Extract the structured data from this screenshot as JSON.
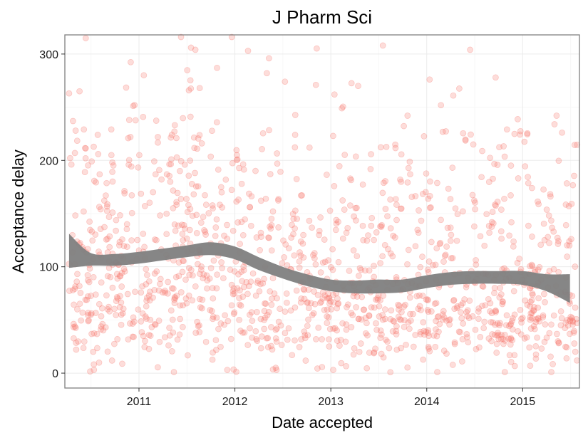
{
  "chart_data": {
    "type": "scatter",
    "title": "J Pharm Sci",
    "xlabel": "Date accepted",
    "ylabel": "Acceptance delay",
    "x_range": [
      "2010-03-25",
      "2015-08-05"
    ],
    "ylim": [
      -14,
      318
    ],
    "x_ticks": [
      "2011-01-01",
      "2012-01-01",
      "2013-01-01",
      "2014-01-01",
      "2015-01-01"
    ],
    "x_tick_labels": [
      "2011",
      "2012",
      "2013",
      "2014",
      "2015"
    ],
    "y_ticks": [
      0,
      100,
      200,
      300
    ],
    "y_tick_labels": [
      "0",
      "100",
      "200",
      "300"
    ],
    "grid": true,
    "point_color": "#f8766d",
    "point_alpha": 0.25,
    "smooth_color": "#7f7f7f",
    "series": [
      {
        "points_highlight": [
          {
            "x": "2010-04-10",
            "y": 263
          },
          {
            "x": "2010-04-25",
            "y": 237
          },
          {
            "x": "2010-05-05",
            "y": 228
          },
          {
            "x": "2010-05-20",
            "y": 265
          },
          {
            "x": "2010-06-12",
            "y": 202
          },
          {
            "x": "2010-07-28",
            "y": 224
          },
          {
            "x": "2010-09-18",
            "y": 205
          },
          {
            "x": "2010-11-25",
            "y": 238
          },
          {
            "x": "2010-12-15",
            "y": 252
          },
          {
            "x": "2011-01-02",
            "y": 205
          },
          {
            "x": "2011-05-06",
            "y": 224
          },
          {
            "x": "2011-06-10",
            "y": 316
          },
          {
            "x": "2011-07-18",
            "y": 306
          },
          {
            "x": "2011-08-20",
            "y": 268
          },
          {
            "x": "2011-10-25",
            "y": 287
          },
          {
            "x": "2011-12-20",
            "y": 316
          },
          {
            "x": "2012-02-20",
            "y": 303
          },
          {
            "x": "2012-05-10",
            "y": 296
          },
          {
            "x": "2012-05-02",
            "y": 282
          },
          {
            "x": "2012-07-10",
            "y": 274
          },
          {
            "x": "2012-11-05",
            "y": 271
          },
          {
            "x": "2013-01-15",
            "y": 262
          },
          {
            "x": "2013-02-12",
            "y": 249
          },
          {
            "x": "2013-04-15",
            "y": 270
          },
          {
            "x": "2013-07-18",
            "y": 308
          },
          {
            "x": "2013-10-20",
            "y": 242
          },
          {
            "x": "2014-01-12",
            "y": 276
          },
          {
            "x": "2014-04-12",
            "y": 261
          },
          {
            "x": "2014-06-15",
            "y": 304
          },
          {
            "x": "2014-09-20",
            "y": 278
          },
          {
            "x": "2015-05-10",
            "y": 242
          },
          {
            "x": "2015-05-02",
            "y": 234
          },
          {
            "x": "2012-06-05",
            "y": 5
          },
          {
            "x": "2012-06-08",
            "y": 3
          },
          {
            "x": "2011-05-14",
            "y": 1
          },
          {
            "x": "2013-01-10",
            "y": 3
          },
          {
            "x": "2014-02-10",
            "y": 1
          },
          {
            "x": "2014-10-25",
            "y": 1
          },
          {
            "x": "2015-04-20",
            "y": 1
          }
        ],
        "density": [
          {
            "year": 2010.33,
            "mean": 100
          },
          {
            "year": 2010.75,
            "mean": 104
          },
          {
            "year": 2011.25,
            "mean": 110
          },
          {
            "year": 2011.75,
            "mean": 115
          },
          {
            "year": 2012.25,
            "mean": 98
          },
          {
            "year": 2012.75,
            "mean": 86
          },
          {
            "year": 2013.25,
            "mean": 80
          },
          {
            "year": 2013.75,
            "mean": 82
          },
          {
            "year": 2014.25,
            "mean": 87
          },
          {
            "year": 2014.75,
            "mean": 86
          },
          {
            "year": 2015.25,
            "mean": 80
          }
        ]
      }
    ],
    "smooth": {
      "x": [
        "2010-04-10",
        "2010-07-01",
        "2010-10-01",
        "2011-01-01",
        "2011-04-01",
        "2011-07-01",
        "2011-10-01",
        "2012-01-01",
        "2012-04-01",
        "2012-07-01",
        "2012-10-01",
        "2013-01-01",
        "2013-04-01",
        "2013-07-01",
        "2013-10-01",
        "2014-01-01",
        "2014-04-01",
        "2014-07-01",
        "2014-10-01",
        "2015-01-01",
        "2015-04-01",
        "2015-06-30"
      ],
      "upper": [
        131,
        113,
        112,
        114,
        117,
        120,
        123,
        119,
        109,
        100,
        93,
        88,
        87,
        88,
        88,
        92,
        95,
        96,
        96,
        96,
        93,
        93
      ],
      "lower": [
        99,
        101,
        101,
        103,
        106,
        109,
        111,
        107,
        97,
        89,
        82,
        77,
        75,
        75,
        76,
        80,
        83,
        84,
        84,
        83,
        77,
        66
      ]
    }
  }
}
